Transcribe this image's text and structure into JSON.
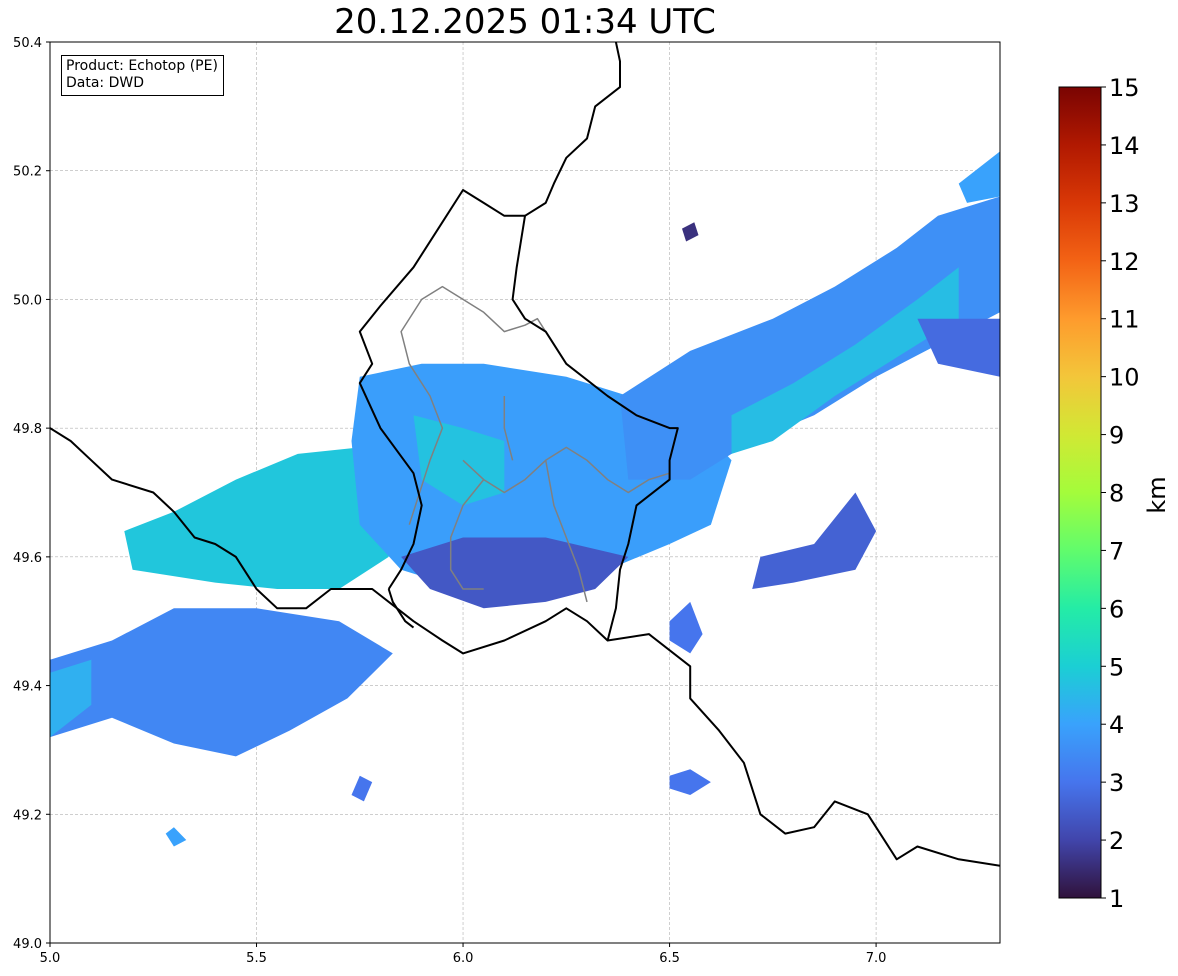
{
  "title": "20.12.2025 01:34 UTC",
  "info_box": {
    "product": "Product: Echotop (PE)",
    "data": "Data: DWD"
  },
  "map": {
    "x_ticks": [
      {
        "value": 5.0,
        "label": "5.0"
      },
      {
        "value": 5.5,
        "label": "5.5"
      },
      {
        "value": 6.0,
        "label": "6.0"
      },
      {
        "value": 6.5,
        "label": "6.5"
      },
      {
        "value": 7.0,
        "label": "7.0"
      }
    ],
    "y_ticks": [
      {
        "value": 49.0,
        "label": "49.0"
      },
      {
        "value": 49.2,
        "label": "49.2"
      },
      {
        "value": 49.4,
        "label": "49.4"
      },
      {
        "value": 49.6,
        "label": "49.6"
      },
      {
        "value": 49.8,
        "label": "49.8"
      },
      {
        "value": 50.0,
        "label": "50.0"
      },
      {
        "value": 50.2,
        "label": "50.2"
      },
      {
        "value": 50.4,
        "label": "50.4"
      }
    ],
    "lon_range": [
      5.0,
      7.3
    ],
    "lat_range": [
      49.0,
      50.4
    ],
    "grid": true
  },
  "colorbar": {
    "label": "km",
    "min": 1,
    "max": 15,
    "ticks": [
      "1",
      "2",
      "3",
      "4",
      "5",
      "6",
      "7",
      "8",
      "9",
      "10",
      "11",
      "12",
      "13",
      "14",
      "15"
    ],
    "colors": [
      "#30123b",
      "#4145ab",
      "#4675ed",
      "#39a2fc",
      "#1bcfd4",
      "#24eca6",
      "#61fc6c",
      "#a4fc3b",
      "#d1e834",
      "#f3c63a",
      "#fe9b2d",
      "#f36315",
      "#d93806",
      "#b11901",
      "#7a0402"
    ]
  },
  "echo_regions": [
    {
      "value_km": 3.4,
      "points": [
        [
          5.0,
          49.44
        ],
        [
          5.15,
          49.47
        ],
        [
          5.3,
          49.52
        ],
        [
          5.5,
          49.52
        ],
        [
          5.7,
          49.5
        ],
        [
          5.83,
          49.45
        ],
        [
          5.72,
          49.38
        ],
        [
          5.58,
          49.33
        ],
        [
          5.45,
          49.29
        ],
        [
          5.3,
          49.31
        ],
        [
          5.15,
          49.35
        ],
        [
          5.0,
          49.32
        ]
      ]
    },
    {
      "value_km": 4.3,
      "points": [
        [
          5.0,
          49.42
        ],
        [
          5.1,
          49.44
        ],
        [
          5.1,
          49.37
        ],
        [
          5.0,
          49.32
        ]
      ]
    },
    {
      "value_km": 4.8,
      "points": [
        [
          5.18,
          49.64
        ],
        [
          5.3,
          49.67
        ],
        [
          5.45,
          49.72
        ],
        [
          5.6,
          49.76
        ],
        [
          5.75,
          49.77
        ],
        [
          5.8,
          49.7
        ],
        [
          5.82,
          49.6
        ],
        [
          5.7,
          49.55
        ],
        [
          5.55,
          49.55
        ],
        [
          5.4,
          49.56
        ],
        [
          5.2,
          49.58
        ]
      ]
    },
    {
      "value_km": 3.9,
      "points": [
        [
          5.75,
          49.88
        ],
        [
          5.9,
          49.9
        ],
        [
          6.05,
          49.9
        ],
        [
          6.25,
          49.88
        ],
        [
          6.4,
          49.85
        ],
        [
          6.55,
          49.82
        ],
        [
          6.65,
          49.75
        ],
        [
          6.6,
          49.65
        ],
        [
          6.5,
          49.62
        ],
        [
          6.35,
          49.58
        ],
        [
          6.2,
          49.55
        ],
        [
          6.0,
          49.55
        ],
        [
          5.85,
          49.58
        ],
        [
          5.75,
          49.65
        ],
        [
          5.73,
          49.78
        ]
      ]
    },
    {
      "value_km": 4.7,
      "points": [
        [
          5.88,
          49.82
        ],
        [
          6.0,
          49.8
        ],
        [
          6.1,
          49.78
        ],
        [
          6.1,
          49.7
        ],
        [
          6.0,
          49.68
        ],
        [
          5.9,
          49.72
        ]
      ]
    },
    {
      "value_km": 2.4,
      "points": [
        [
          5.85,
          49.6
        ],
        [
          6.0,
          49.63
        ],
        [
          6.2,
          49.63
        ],
        [
          6.4,
          49.6
        ],
        [
          6.32,
          49.55
        ],
        [
          6.2,
          49.53
        ],
        [
          6.05,
          49.52
        ],
        [
          5.92,
          49.55
        ]
      ]
    },
    {
      "value_km": 3.6,
      "points": [
        [
          6.38,
          49.85
        ],
        [
          6.55,
          49.92
        ],
        [
          6.75,
          49.97
        ],
        [
          6.9,
          50.02
        ],
        [
          7.05,
          50.08
        ],
        [
          7.15,
          50.13
        ],
        [
          7.3,
          50.16
        ],
        [
          7.3,
          49.98
        ],
        [
          7.15,
          49.93
        ],
        [
          7.0,
          49.88
        ],
        [
          6.85,
          49.82
        ],
        [
          6.7,
          49.78
        ],
        [
          6.55,
          49.72
        ],
        [
          6.4,
          49.72
        ]
      ]
    },
    {
      "value_km": 4.6,
      "points": [
        [
          6.65,
          49.82
        ],
        [
          6.8,
          49.87
        ],
        [
          6.95,
          49.93
        ],
        [
          7.1,
          50.0
        ],
        [
          7.2,
          50.05
        ],
        [
          7.2,
          49.97
        ],
        [
          7.05,
          49.91
        ],
        [
          6.9,
          49.85
        ],
        [
          6.75,
          49.78
        ],
        [
          6.65,
          49.76
        ]
      ]
    },
    {
      "value_km": 2.8,
      "points": [
        [
          7.1,
          49.97
        ],
        [
          7.3,
          49.97
        ],
        [
          7.3,
          49.88
        ],
        [
          7.15,
          49.9
        ]
      ]
    },
    {
      "value_km": 2.6,
      "points": [
        [
          6.72,
          49.6
        ],
        [
          6.85,
          49.62
        ],
        [
          6.95,
          49.7
        ],
        [
          7.0,
          49.64
        ],
        [
          6.95,
          49.58
        ],
        [
          6.8,
          49.56
        ],
        [
          6.7,
          49.55
        ]
      ]
    },
    {
      "value_km": 3.0,
      "points": [
        [
          6.5,
          49.47
        ],
        [
          6.5,
          49.5
        ],
        [
          6.55,
          49.53
        ],
        [
          6.58,
          49.48
        ],
        [
          6.55,
          49.45
        ]
      ]
    },
    {
      "value_km": 3.0,
      "points": [
        [
          6.5,
          49.24
        ],
        [
          6.5,
          49.26
        ],
        [
          6.55,
          49.27
        ],
        [
          6.6,
          49.25
        ],
        [
          6.55,
          49.23
        ]
      ]
    },
    {
      "value_km": 3.0,
      "points": [
        [
          5.73,
          49.23
        ],
        [
          5.75,
          49.26
        ],
        [
          5.78,
          49.25
        ],
        [
          5.76,
          49.22
        ]
      ]
    },
    {
      "value_km": 4.0,
      "points": [
        [
          5.28,
          49.17
        ],
        [
          5.3,
          49.18
        ],
        [
          5.33,
          49.16
        ],
        [
          5.3,
          49.15
        ]
      ]
    },
    {
      "value_km": 4.0,
      "points": [
        [
          7.2,
          50.18
        ],
        [
          7.3,
          50.23
        ],
        [
          7.3,
          50.16
        ],
        [
          7.22,
          50.15
        ]
      ]
    },
    {
      "value_km": 1.6,
      "points": [
        [
          6.53,
          50.11
        ],
        [
          6.56,
          50.12
        ],
        [
          6.57,
          50.1
        ],
        [
          6.54,
          50.09
        ]
      ]
    }
  ],
  "borders": {
    "country": [
      [
        [
          5.0,
          49.8
        ],
        [
          5.05,
          49.78
        ],
        [
          5.1,
          49.75
        ],
        [
          5.15,
          49.72
        ],
        [
          5.25,
          49.7
        ],
        [
          5.3,
          49.67
        ],
        [
          5.35,
          49.63
        ],
        [
          5.4,
          49.62
        ],
        [
          5.45,
          49.6
        ],
        [
          5.5,
          49.55
        ],
        [
          5.55,
          49.52
        ],
        [
          5.62,
          49.52
        ],
        [
          5.68,
          49.55
        ],
        [
          5.78,
          49.55
        ],
        [
          5.88,
          49.5
        ],
        [
          5.95,
          49.47
        ],
        [
          6.0,
          49.45
        ],
        [
          6.1,
          49.47
        ],
        [
          6.2,
          49.5
        ],
        [
          6.25,
          49.52
        ],
        [
          6.3,
          49.5
        ],
        [
          6.35,
          49.47
        ],
        [
          6.45,
          49.48
        ],
        [
          6.55,
          49.43
        ],
        [
          6.55,
          49.38
        ],
        [
          6.62,
          49.33
        ],
        [
          6.68,
          49.28
        ],
        [
          6.72,
          49.2
        ],
        [
          6.78,
          49.17
        ],
        [
          6.85,
          49.18
        ],
        [
          6.9,
          49.22
        ],
        [
          6.98,
          49.2
        ],
        [
          7.05,
          49.13
        ],
        [
          7.1,
          49.15
        ],
        [
          7.2,
          49.13
        ],
        [
          7.3,
          49.12
        ]
      ],
      [
        [
          5.82,
          49.55
        ],
        [
          5.85,
          49.58
        ],
        [
          5.88,
          49.62
        ],
        [
          5.9,
          49.68
        ],
        [
          5.88,
          49.73
        ],
        [
          5.8,
          49.8
        ],
        [
          5.75,
          49.87
        ],
        [
          5.78,
          49.9
        ],
        [
          5.75,
          49.95
        ],
        [
          5.8,
          49.99
        ],
        [
          5.88,
          50.05
        ],
        [
          5.95,
          50.12
        ],
        [
          6.0,
          50.17
        ],
        [
          6.05,
          50.15
        ],
        [
          6.1,
          50.13
        ],
        [
          6.15,
          50.13
        ],
        [
          6.13,
          50.05
        ],
        [
          6.12,
          50.0
        ],
        [
          6.15,
          49.97
        ],
        [
          6.2,
          49.95
        ],
        [
          6.25,
          49.9
        ],
        [
          6.35,
          49.85
        ],
        [
          6.42,
          49.82
        ],
        [
          6.5,
          49.8
        ],
        [
          6.52,
          49.8
        ],
        [
          6.5,
          49.75
        ],
        [
          6.5,
          49.72
        ],
        [
          6.42,
          49.68
        ],
        [
          6.4,
          49.62
        ],
        [
          6.38,
          49.58
        ],
        [
          6.37,
          49.52
        ],
        [
          6.35,
          49.47
        ]
      ],
      [
        [
          6.15,
          50.13
        ],
        [
          6.2,
          50.15
        ],
        [
          6.22,
          50.18
        ],
        [
          6.25,
          50.22
        ],
        [
          6.3,
          50.25
        ],
        [
          6.32,
          50.3
        ],
        [
          6.38,
          50.33
        ],
        [
          6.38,
          50.37
        ],
        [
          6.37,
          50.4
        ]
      ],
      [
        [
          5.82,
          49.55
        ],
        [
          5.83,
          49.53
        ],
        [
          5.86,
          49.5
        ],
        [
          5.88,
          49.49
        ]
      ]
    ],
    "province": [
      [
        [
          5.87,
          49.65
        ],
        [
          5.92,
          49.75
        ],
        [
          5.95,
          49.8
        ],
        [
          5.92,
          49.85
        ],
        [
          5.87,
          49.9
        ],
        [
          5.85,
          49.95
        ],
        [
          5.9,
          50.0
        ],
        [
          5.95,
          50.02
        ],
        [
          6.0,
          50.0
        ],
        [
          6.05,
          49.98
        ],
        [
          6.1,
          49.95
        ],
        [
          6.15,
          49.96
        ],
        [
          6.18,
          49.97
        ],
        [
          6.2,
          49.95
        ]
      ],
      [
        [
          6.0,
          49.75
        ],
        [
          6.05,
          49.72
        ],
        [
          6.1,
          49.7
        ],
        [
          6.15,
          49.72
        ],
        [
          6.2,
          49.75
        ],
        [
          6.25,
          49.77
        ],
        [
          6.3,
          49.75
        ],
        [
          6.35,
          49.72
        ],
        [
          6.4,
          49.7
        ],
        [
          6.45,
          49.72
        ],
        [
          6.5,
          49.73
        ]
      ],
      [
        [
          6.05,
          49.72
        ],
        [
          6.0,
          49.68
        ],
        [
          5.97,
          49.63
        ],
        [
          5.97,
          49.58
        ],
        [
          6.0,
          49.55
        ],
        [
          6.05,
          49.55
        ]
      ],
      [
        [
          6.2,
          49.75
        ],
        [
          6.22,
          49.68
        ],
        [
          6.25,
          49.63
        ],
        [
          6.28,
          49.58
        ],
        [
          6.3,
          49.53
        ]
      ],
      [
        [
          6.1,
          49.85
        ],
        [
          6.1,
          49.8
        ],
        [
          6.12,
          49.75
        ]
      ]
    ]
  }
}
